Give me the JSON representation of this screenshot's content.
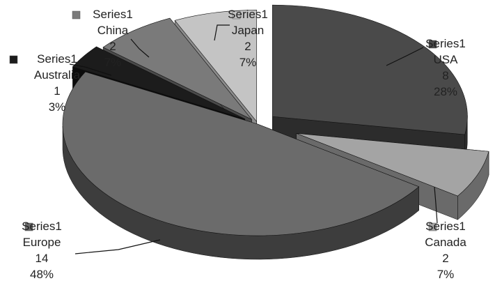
{
  "chart_data": {
    "type": "pie",
    "style": "3d-exploded",
    "series": [
      {
        "name": "Series1",
        "categories": [
          "USA",
          "Canada",
          "Europe",
          "Australia",
          "China",
          "Japan"
        ],
        "values": [
          8,
          2,
          14,
          1,
          2,
          2
        ],
        "percent_labels": [
          "28%",
          "7%",
          "48%",
          "3%",
          "7%",
          "7%"
        ]
      }
    ],
    "colors": [
      "#4a4a4a",
      "#a4a4a4",
      "#6b6b6b",
      "#1c1c1c",
      "#7a7a7a",
      "#c4c4c4"
    ],
    "side_colors": [
      "#2c2c2c",
      "#6a6a6a",
      "#3d3d3d",
      "#0b0b0b",
      "#4a4a4a",
      "#8c8c8c"
    ]
  }
}
